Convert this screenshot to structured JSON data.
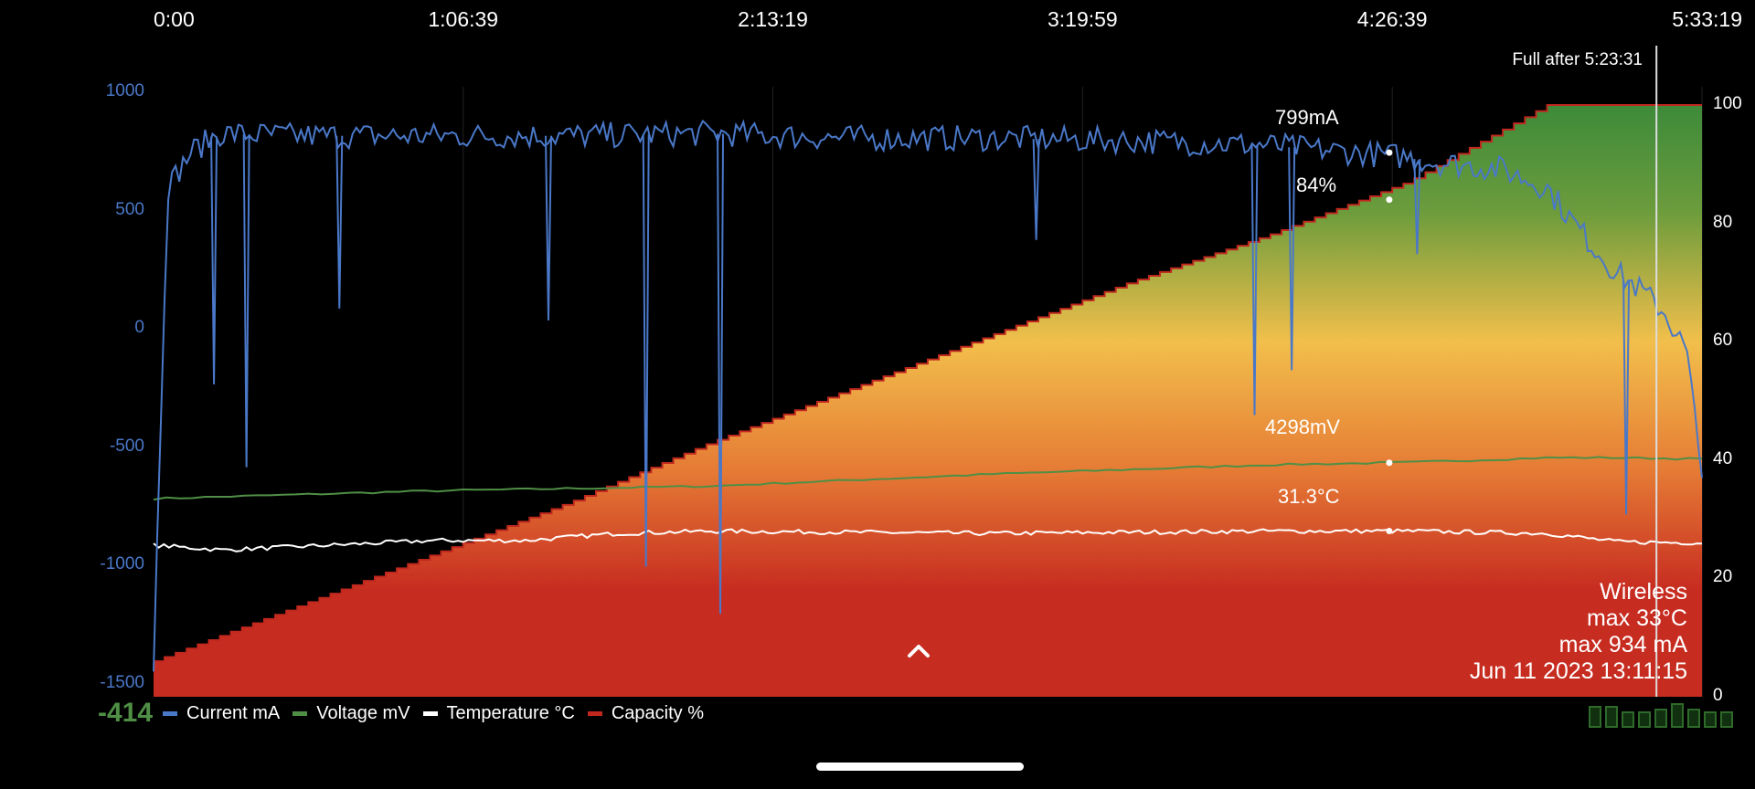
{
  "chart_data": {
    "type": "line",
    "x_ticks": [
      "0:00",
      "1:06:39",
      "2:13:19",
      "3:19:59",
      "4:26:39",
      "5:33:19"
    ],
    "xlim": [
      "0:00",
      "5:33:19"
    ],
    "left_axis": {
      "series": "Current mA",
      "ticks": [
        "1000",
        "500",
        "0",
        "-500",
        "-1000",
        "-1500"
      ],
      "ylim": [
        -1500,
        1000
      ]
    },
    "right_axis": {
      "series": "Capacity %",
      "ticks": [
        "100",
        "80",
        "60",
        "40",
        "20",
        "0"
      ],
      "ylim": [
        0,
        100
      ]
    },
    "series": [
      {
        "name": "Current mA",
        "color": "#4a78c8",
        "x": [
          "0:00",
          "0:03",
          "0:08",
          "0:14",
          "0:30",
          "1:00",
          "1:30",
          "2:00",
          "2:30",
          "3:00",
          "3:30",
          "4:00",
          "4:30",
          "4:35",
          "4:50",
          "5:00",
          "5:05",
          "5:10",
          "5:15",
          "5:20",
          "5:25",
          "5:30",
          "5:33"
        ],
        "y": [
          -1360,
          650,
          800,
          880,
          870,
          870,
          870,
          880,
          860,
          860,
          850,
          830,
          780,
          760,
          730,
          650,
          520,
          400,
          290,
          220,
          130,
          -40,
          -520
        ]
      },
      {
        "name": "Voltage mV",
        "color": "#4f8f45",
        "x": [
          "0:00",
          "1:00",
          "2:00",
          "3:00",
          "4:00",
          "4:30",
          "5:00",
          "5:15",
          "5:33"
        ],
        "y": [
          -663,
          -630,
          -610,
          -560,
          -520,
          -510,
          -490,
          -490,
          -495
        ]
      },
      {
        "name": "Temperature °C",
        "color": "#ffffff",
        "x": [
          "0:00",
          "0:15",
          "1:00",
          "1:20",
          "1:40",
          "2:00",
          "3:00",
          "4:00",
          "4:30",
          "5:00",
          "5:15",
          "5:33"
        ],
        "y": [
          -860,
          -880,
          -840,
          -840,
          -810,
          -800,
          -810,
          -800,
          -800,
          -810,
          -845,
          -850
        ]
      },
      {
        "name": "Capacity %",
        "color": "#c0281e",
        "x": [
          "0:00",
          "0:30",
          "1:00",
          "1:30",
          "2:00",
          "2:30",
          "3:00",
          "3:30",
          "4:00",
          "4:30",
          "5:00",
          "5:33"
        ],
        "y": [
          6,
          15,
          24,
          33,
          43,
          52,
          61,
          70,
          78,
          87,
          100,
          100
        ]
      }
    ],
    "spikes": [
      {
        "x": "0:13",
        "y": -180
      },
      {
        "x": "0:20",
        "y": -530
      },
      {
        "x": "0:40",
        "y": 140
      },
      {
        "x": "1:25",
        "y": 90
      },
      {
        "x": "1:46",
        "y": -950
      },
      {
        "x": "2:02",
        "y": -1150
      },
      {
        "x": "3:10",
        "y": 430
      },
      {
        "x": "3:57",
        "y": -310
      },
      {
        "x": "4:05",
        "y": -120
      },
      {
        "x": "4:32",
        "y": 370
      },
      {
        "x": "5:17",
        "y": -730
      }
    ],
    "cursor": {
      "x": "4:26:00",
      "labels": {
        "current": "799mA",
        "capacity": "84%",
        "voltage": "4298mV",
        "temperature": "31.3°C"
      }
    },
    "full_after": {
      "x": "5:23:31",
      "label": "Full after 5:23:31"
    }
  },
  "info": {
    "type": "Wireless",
    "max_temp": "max 33°C",
    "max_current": "max 934 mA",
    "timestamp": "Jun 11 2023 13:11:15"
  },
  "legend": [
    {
      "label": "Current mA",
      "color": "#4a78c8"
    },
    {
      "label": "Voltage mV",
      "color": "#4f8f45"
    },
    {
      "label": "Temperature °C",
      "color": "#ffffff"
    },
    {
      "label": "Capacity %",
      "color": "#c0281e"
    }
  ],
  "live_current": "-414",
  "cell_levels": [
    0.8,
    0.8,
    0.6,
    0.6,
    0.7,
    0.9,
    0.7,
    0.6,
    0.6
  ]
}
